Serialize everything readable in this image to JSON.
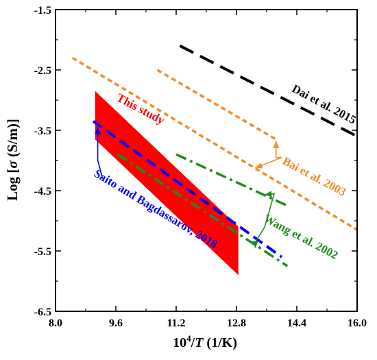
{
  "chart_data": {
    "type": "line",
    "xlabel_base": "10",
    "xlabel_sup": "4",
    "xlabel_var": "T",
    "xlabel_unit": " (1/K)",
    "ylabel_pre": "Log [",
    "ylabel_sigma": "σ",
    "ylabel_post": " (S/m)]",
    "xlim": [
      8.0,
      16.0
    ],
    "ylim": [
      -6.5,
      -1.5
    ],
    "xticks": [
      8.0,
      9.6,
      11.2,
      12.8,
      14.4,
      16.0
    ],
    "xtick_labels": [
      "8.0",
      "9.6",
      "11.2",
      "12.8",
      "14.4",
      "16.0"
    ],
    "yticks": [
      -1.5,
      -2.5,
      -3.5,
      -4.5,
      -5.5,
      -6.5
    ],
    "ytick_labels": [
      "-1.5",
      "-2.5",
      "-3.5",
      "-4.5",
      "-5.5",
      "-6.5"
    ],
    "band": {
      "name": "This study",
      "color": "#ff0000",
      "polygon": [
        [
          9.05,
          -2.85
        ],
        [
          12.85,
          -5.1
        ],
        [
          12.85,
          -5.9
        ],
        [
          9.05,
          -3.65
        ]
      ]
    },
    "series": [
      {
        "id": "dai1",
        "color": "#000000",
        "dash": "dash-long",
        "values": [
          [
            11.3,
            -2.1
          ],
          [
            16.0,
            -3.6
          ]
        ]
      },
      {
        "id": "bai1",
        "color": "#f28c28",
        "dash": "dot",
        "values": [
          [
            8.45,
            -2.3
          ],
          [
            16.0,
            -5.15
          ]
        ]
      },
      {
        "id": "bai2",
        "color": "#f28c28",
        "dash": "dot",
        "values": [
          [
            10.7,
            -2.5
          ],
          [
            13.85,
            -3.65
          ]
        ]
      },
      {
        "id": "wang1",
        "color": "#1e8c1e",
        "dash": "dashdot",
        "values": [
          [
            11.2,
            -3.9
          ],
          [
            14.15,
            -4.75
          ]
        ]
      },
      {
        "id": "wang2",
        "color": "#1e8c1e",
        "dash": "dashdot",
        "values": [
          [
            9.65,
            -3.9
          ],
          [
            14.15,
            -5.75
          ]
        ]
      },
      {
        "id": "saito",
        "color": "#0000ff",
        "dash": "dash",
        "values": [
          [
            9.0,
            -3.35
          ],
          [
            14.0,
            -5.6
          ]
        ]
      }
    ],
    "annotations": [
      {
        "id": "label-this-study",
        "text": "This study",
        "x": 9.6,
        "y": -3.0,
        "angle": 28,
        "color": "#ff0000"
      },
      {
        "id": "label-dai",
        "text": "Dai et al. 2015",
        "x": 14.25,
        "y": -2.85,
        "angle": 28,
        "color": "#000000"
      },
      {
        "id": "label-bai",
        "text": "Bai et al. 2003",
        "x": 14.0,
        "y": -4.05,
        "angle": 28,
        "color": "#f28c28"
      },
      {
        "id": "label-wang",
        "text": "Wang et al. 2002",
        "x": 13.5,
        "y": -5.0,
        "angle": 28,
        "color": "#1e8c1e"
      },
      {
        "id": "label-saito",
        "text": "Saito and Bagdassarov, 2018",
        "x": 9.0,
        "y": -4.25,
        "angle": 31,
        "color": "#0000ff"
      }
    ],
    "arrows": [
      {
        "id": "arrow-bai-1",
        "color": "#f28c28",
        "from": [
          14.0,
          -3.95
        ],
        "mid": [
          13.85,
          -3.95
        ],
        "to": [
          13.85,
          -3.68
        ]
      },
      {
        "id": "arrow-bai-2",
        "color": "#f28c28",
        "from": [
          14.0,
          -3.95
        ],
        "mid": [
          13.4,
          -4.1
        ],
        "to": [
          13.3,
          -4.12
        ]
      },
      {
        "id": "arrow-wang-1",
        "color": "#1e8c1e",
        "from": [
          13.55,
          -5.1
        ],
        "mid": [
          13.8,
          -4.55
        ],
        "to": [
          13.55,
          -4.57
        ]
      },
      {
        "id": "arrow-wang-2",
        "color": "#1e8c1e",
        "from": [
          13.55,
          -5.1
        ],
        "mid": [
          13.3,
          -5.35
        ],
        "to": [
          13.3,
          -5.45
        ]
      },
      {
        "id": "arrow-saito",
        "color": "#0000ff",
        "from": [
          9.25,
          -4.3
        ],
        "mid": [
          9.12,
          -4.0
        ],
        "to": [
          9.12,
          -3.45
        ]
      }
    ]
  }
}
